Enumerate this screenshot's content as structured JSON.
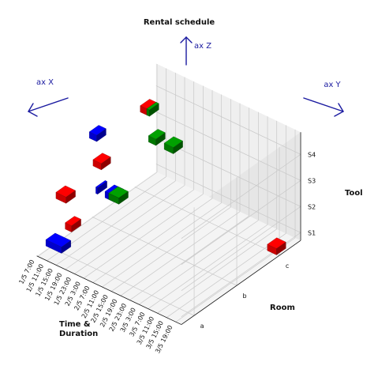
{
  "chart_data": {
    "type": "bar3d",
    "title": "Rental schedule",
    "direction_labels": {
      "x": "ax X",
      "y": "ax Y",
      "z": "ax Z"
    },
    "x_axis": {
      "label_lines": [
        "Time &",
        "Duration"
      ],
      "ticks": [
        "1/5  7:00",
        "1/5  11:00",
        "1/5  15:00",
        "1/5  19:00",
        "1/5  23:00",
        "2/5  3:00",
        "2/5  7:00",
        "2/5  11:00",
        "2/5  15:00",
        "2/5  19:00",
        "2/5  23:00",
        "3/5  3:00",
        "3/5  7:00",
        "3/5  11:00",
        "3/5  15:00",
        "3/5  19:00"
      ]
    },
    "y_axis": {
      "label": "Room",
      "ticks": [
        "a",
        "b",
        "c"
      ]
    },
    "z_axis": {
      "label": "Tool",
      "ticks": [
        "S1",
        "S2",
        "S3",
        "S4"
      ]
    },
    "grid": true,
    "bars": [
      {
        "room": "a",
        "tool": "S1",
        "start": 0.0,
        "duration": 1.7,
        "color": "#0000cc"
      },
      {
        "room": "c",
        "tool": "S1",
        "start": 14.8,
        "duration": 1.0,
        "color": "#cc0000"
      },
      {
        "room": "a",
        "tool": "S2",
        "start": 2.1,
        "duration": 0.7,
        "color": "#cc0000"
      },
      {
        "room": "b",
        "tool": "S2",
        "start": 1.8,
        "duration": 1.0,
        "color": "#0000cc"
      },
      {
        "room": "a",
        "tool": "S3",
        "start": 1.1,
        "duration": 1.1,
        "color": "#cc0000"
      },
      {
        "room": "b",
        "tool": "S2",
        "start": 2.2,
        "duration": 1.1,
        "color": "#007700"
      },
      {
        "room": "b",
        "tool": "S2",
        "start": 0.8,
        "duration": 0.2,
        "color": "#0000cc"
      },
      {
        "room": "b",
        "tool": "S3",
        "start": 0.5,
        "duration": 0.9,
        "color": "#cc0000"
      },
      {
        "room": "c",
        "tool": "S3",
        "start": 1.9,
        "duration": 0.8,
        "color": "#007700"
      },
      {
        "room": "b",
        "tool": "S4",
        "start": 0.1,
        "duration": 0.8,
        "color": "#0000cc"
      },
      {
        "room": "c",
        "tool": "S4",
        "start": 1.0,
        "duration": 0.8,
        "color": "#cc0000"
      },
      {
        "room": "c",
        "tool": "S3",
        "start": 3.6,
        "duration": 1.0,
        "color": "#007700"
      },
      {
        "room": "c",
        "tool": "S4",
        "start": 1.7,
        "duration": 0.3,
        "color": "#007700"
      }
    ]
  }
}
